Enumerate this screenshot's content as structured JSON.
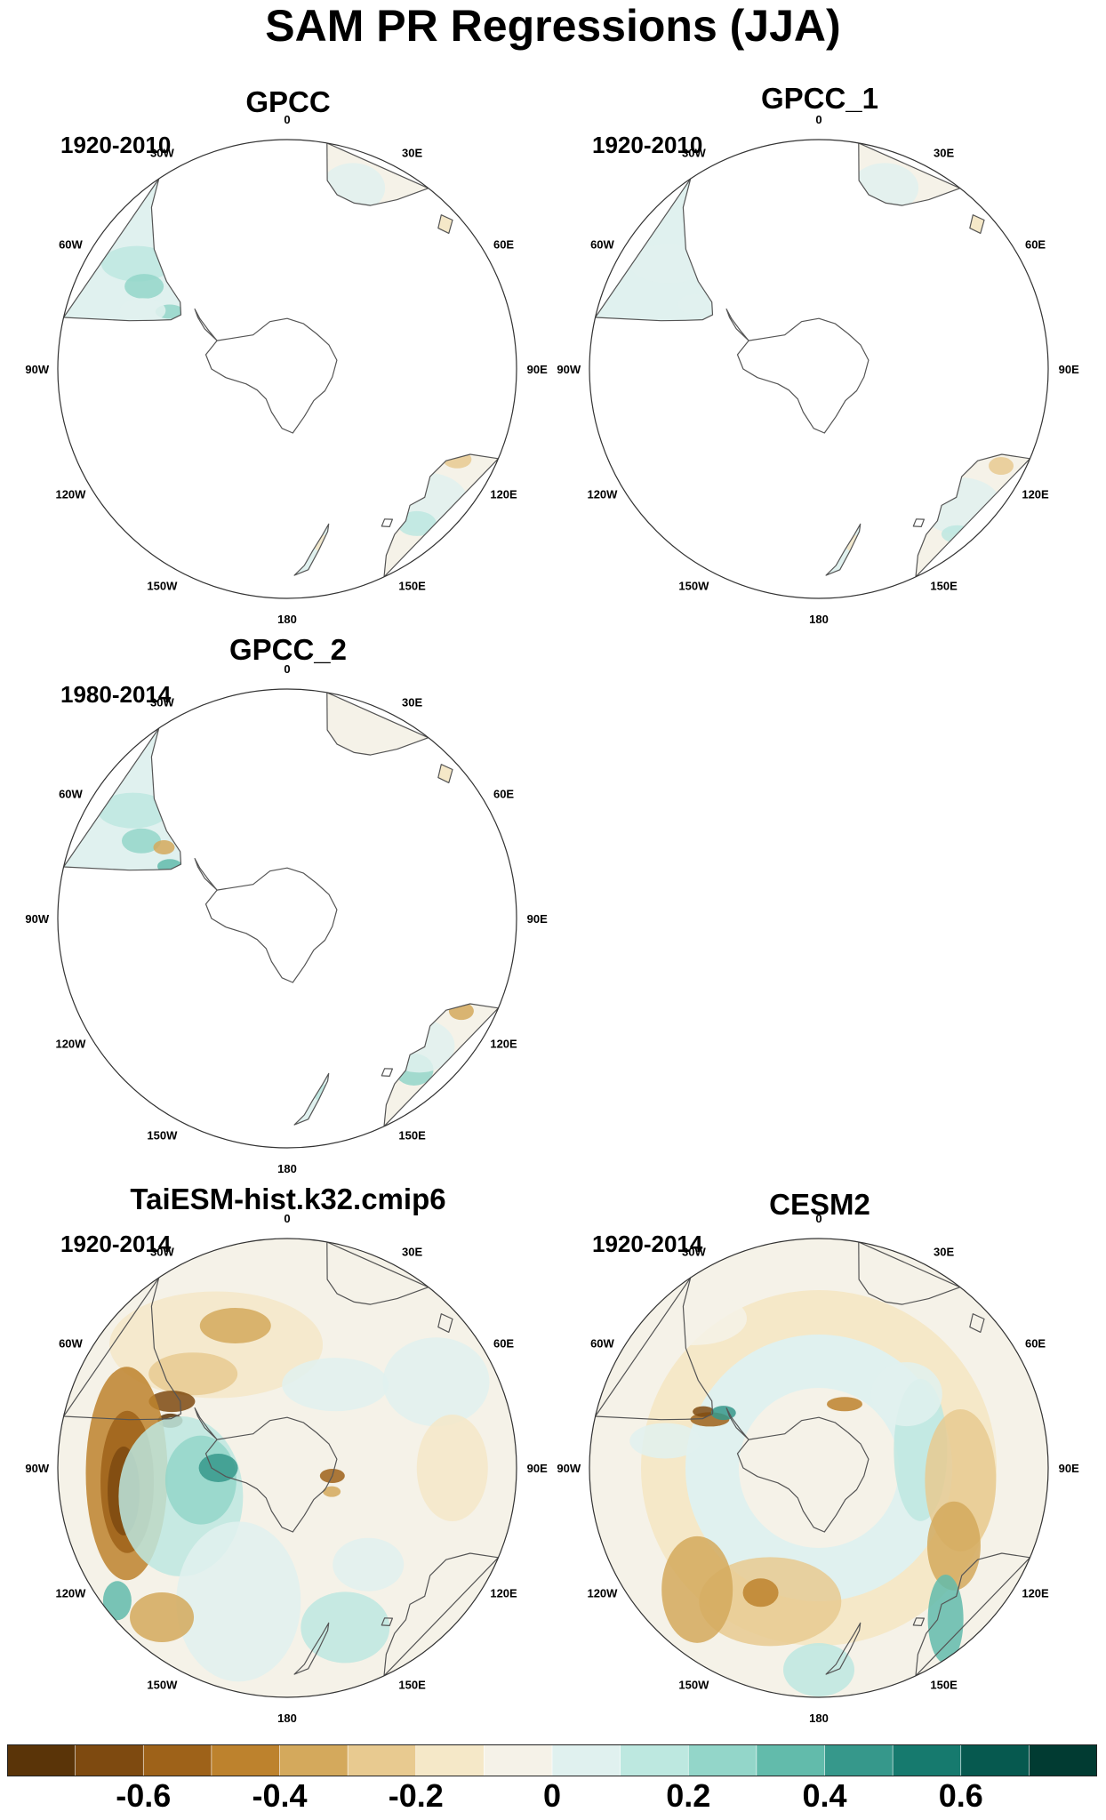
{
  "figure": {
    "title": "SAM PR Regressions (JJA)"
  },
  "panels": [
    {
      "id": "gpcc",
      "title": "GPCC",
      "period": "1920-2010",
      "field": "weak-a"
    },
    {
      "id": "gpcc1",
      "title": "GPCC_1",
      "period": "1920-2010",
      "field": "weak-b"
    },
    {
      "id": "gpcc2",
      "title": "GPCC_2",
      "period": "1980-2014",
      "field": "weak-c"
    },
    {
      "id": "taiesm",
      "title": "TaiESM-hist.k32.cmip6",
      "period": "1920-2014",
      "field": "model-taiesm"
    },
    {
      "id": "cesm2",
      "title": "CESM2",
      "period": "1920-2014",
      "field": "model-cesm2"
    }
  ],
  "longitude_labels": [
    "0",
    "30E",
    "60E",
    "90E",
    "120E",
    "150E",
    "180",
    "150W",
    "120W",
    "90W",
    "60W",
    "30W"
  ],
  "colorbar": {
    "colors": [
      "#5a3408",
      "#7e4a10",
      "#9e6219",
      "#bd822d",
      "#d4a95c",
      "#e8ca90",
      "#f5e8c8",
      "#f5f2e8",
      "#e0f1ef",
      "#bde8e0",
      "#93d6c9",
      "#62bbab",
      "#36988b",
      "#167a6e",
      "#06594f",
      "#013b32"
    ],
    "tick_labels": [
      "-0.6",
      "-0.4",
      "-0.2",
      "0",
      "0.2",
      "0.4",
      "0.6"
    ]
  }
}
